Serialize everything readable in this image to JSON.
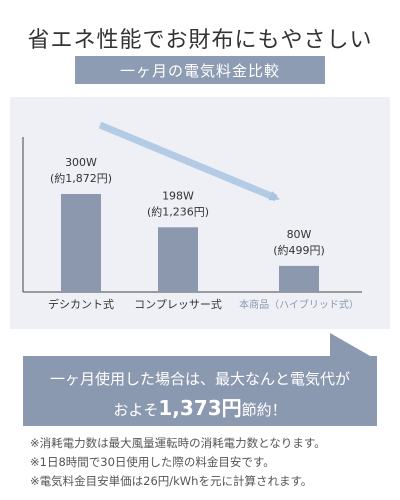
{
  "headline": "省エネ性能でお財布にもやさしい",
  "subhead": "一ヶ月の電気料金比較",
  "chart_data": {
    "type": "bar",
    "categories": [
      "デシカント式",
      "コンプレッサー式",
      "本商品（ハイブリッド式）"
    ],
    "values": [
      300,
      198,
      80
    ],
    "value_labels": [
      "300W",
      "198W",
      "80W"
    ],
    "cost_labels": [
      "(約1,872円)",
      "(約1,236円)",
      "(約499円)"
    ],
    "unit": "W",
    "ylim": [
      0,
      300
    ],
    "colors": {
      "bar": "#8b98ae",
      "category_highlight": "#8b98ae",
      "category_normal": "#333333"
    }
  },
  "callout": {
    "line1": "一ヶ月使用した場合は、最大なんと電気代が",
    "prefix": "およそ",
    "amount": "1,373円",
    "suffix": "節約！"
  },
  "notes": [
    "※消耗電力数は最大風量運転時の消耗電力数となります。",
    "※1日8時間で30日使用した際の料金目安です。",
    "※電気料金目安単価は26円/kWhを元に計算されます。"
  ]
}
